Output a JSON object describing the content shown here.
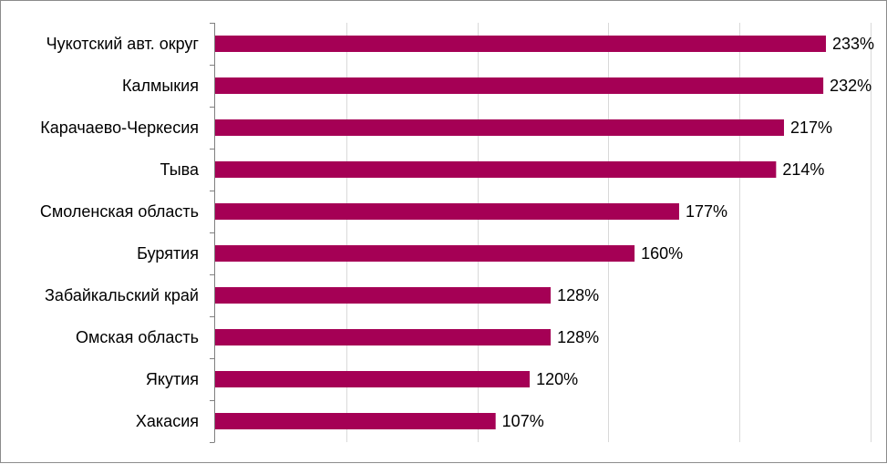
{
  "chart_data": {
    "type": "bar",
    "orientation": "horizontal",
    "categories": [
      "Чукотский авт. округ",
      "Калмыкия",
      "Карачаево-Черкесия",
      "Тыва",
      "Смоленская область",
      "Бурятия",
      "Забайкальский край",
      "Омская область",
      "Якутия",
      "Хакасия"
    ],
    "values": [
      233,
      232,
      217,
      214,
      177,
      160,
      128,
      128,
      120,
      107
    ],
    "value_labels": [
      "233%",
      "232%",
      "217%",
      "214%",
      "177%",
      "160%",
      "128%",
      "128%",
      "120%",
      "107%"
    ],
    "bar_color": "#a50055",
    "grid_color": "#d9d9d9",
    "xlim": [
      0,
      250
    ],
    "grid": true,
    "title": "",
    "xlabel": "",
    "ylabel": ""
  }
}
